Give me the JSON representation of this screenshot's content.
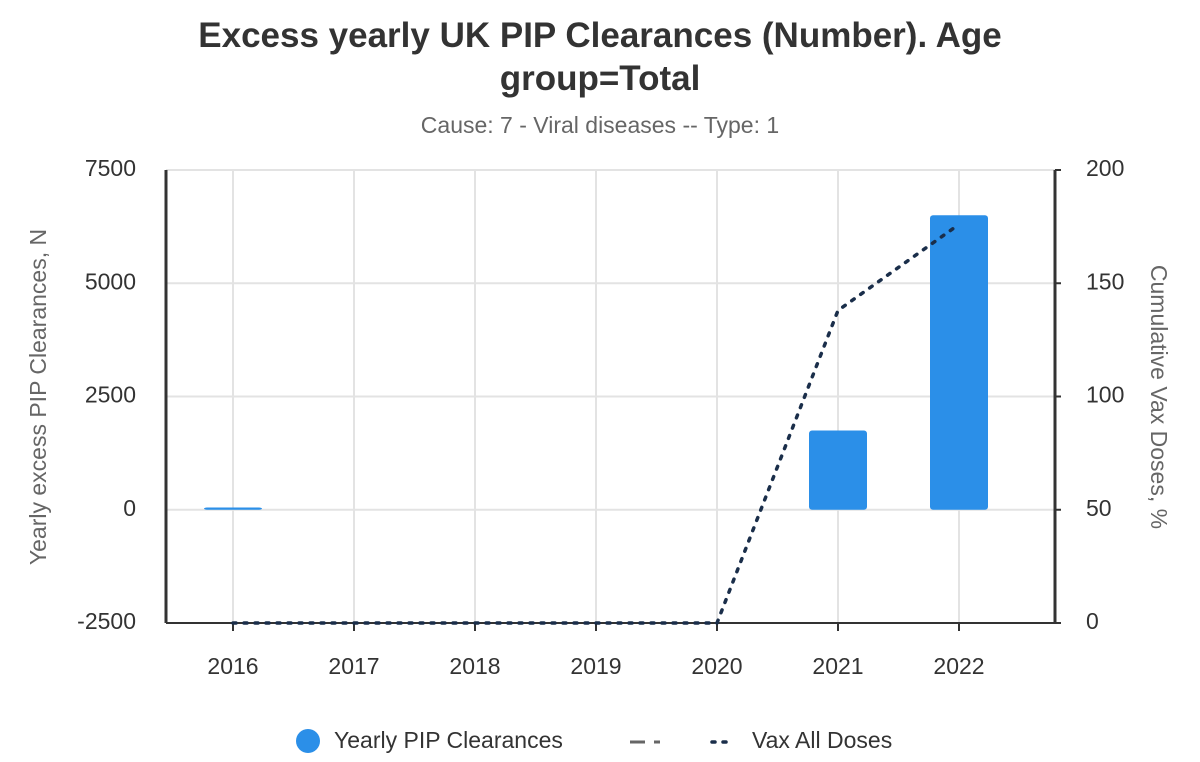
{
  "chart_data": {
    "type": "bar",
    "title": "Excess yearly UK PIP Clearances (Number). Age group=Total",
    "subtitle": "Cause: 7 - Viral diseases -- Type: 1",
    "y_label": "Yearly excess PIP Clearances, N",
    "y2_label": "Cumulative Vax Doses, %",
    "categories": [
      "2016",
      "2017",
      "2018",
      "2019",
      "2020",
      "2021",
      "2022"
    ],
    "series": [
      {
        "name": "Yearly PIP Clearances",
        "color": "#2b8fe8",
        "type": "bar",
        "values": [
          50,
          0,
          0,
          0,
          0,
          1750,
          6500
        ]
      },
      {
        "name": "Vax All Doses",
        "color": "#1a2e4a",
        "type": "line",
        "axis": "y2",
        "values": [
          0,
          0,
          0,
          0,
          0,
          138,
          176
        ]
      }
    ],
    "ylim": [
      -2500,
      7500
    ],
    "yticks": [
      -2500,
      0,
      2500,
      5000,
      7500
    ],
    "y2lim": [
      0,
      200
    ],
    "y2ticks": [
      0,
      50,
      100,
      150,
      200
    ],
    "grid": true
  }
}
